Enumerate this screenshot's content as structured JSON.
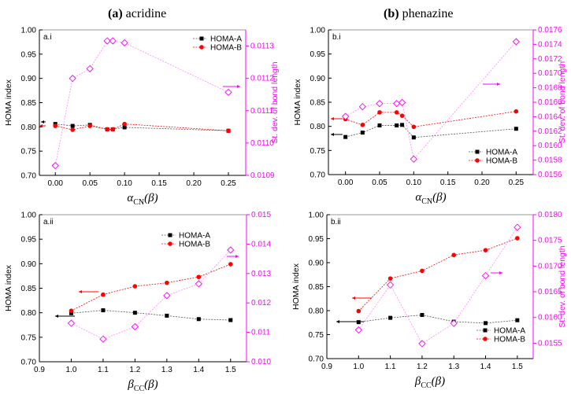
{
  "titles": [
    {
      "letter": "(a)",
      "name": " acridine"
    },
    {
      "letter": "(b)",
      "name": " phenazine"
    }
  ],
  "colors": {
    "homa_a": "#000000",
    "homa_b": "#ff0000",
    "stdev": "#ff00ff",
    "stdev_line": "#ff88ff"
  },
  "chart_data": [
    {
      "type": "line",
      "panel": "a.i",
      "xlabel": {
        "symbol": "α",
        "sub": "CN",
        "suffix": "(β)"
      },
      "ylabel": "HOMA index",
      "ylabel_right": "St. dev. of bond length",
      "xlim": [
        -0.023,
        0.275
      ],
      "xticks": [
        "0.00",
        "0.05",
        "0.10",
        "0.15",
        "0.20",
        "0.25"
      ],
      "ylim": [
        0.7,
        1.0
      ],
      "yticks": [
        "0.70",
        "0.75",
        "0.80",
        "0.85",
        "0.90",
        "0.95",
        "1.00"
      ],
      "ylim_right": [
        0.0109,
        0.01135
      ],
      "yticks_right": [
        "0.0109",
        "0.0110",
        "0.0111",
        "0.0112",
        "0.0113"
      ],
      "legend": "top-right",
      "grid": false,
      "x": [
        0,
        0.025,
        0.05,
        0.075,
        0.083,
        0.1,
        0.25
      ],
      "series": [
        {
          "name": "HOMA-A",
          "axis": "left",
          "marker": "square",
          "values": [
            0.806,
            0.802,
            0.804,
            0.795,
            0.795,
            0.799,
            0.792
          ]
        },
        {
          "name": "HOMA-B",
          "axis": "left",
          "marker": "circle",
          "values": [
            0.802,
            0.794,
            0.802,
            0.795,
            0.795,
            0.806,
            0.792
          ]
        },
        {
          "axis": "right",
          "marker": "diamond-open",
          "values": [
            0.01093,
            0.0112,
            0.01123,
            0.011316,
            0.011316,
            0.01131,
            0.011157
          ]
        }
      ]
    },
    {
      "type": "line",
      "panel": "b.i",
      "xlabel": {
        "symbol": "α",
        "sub": "CN",
        "suffix": "(β)"
      },
      "ylabel": "HOMA index",
      "ylabel_right": "St. dev. of bond length",
      "xlim": [
        -0.025,
        0.275
      ],
      "xticks": [
        "0.00",
        "0.05",
        "0.10",
        "0.15",
        "0.20",
        "0.25"
      ],
      "ylim": [
        0.7,
        1.0
      ],
      "yticks": [
        "0.70",
        "0.75",
        "0.80",
        "0.85",
        "0.90",
        "0.95",
        "1.00"
      ],
      "ylim_right": [
        0.0156,
        0.0176
      ],
      "yticks_right": [
        "0.0156",
        "0.0158",
        "0.0160",
        "0.0162",
        "0.0164",
        "0.0166",
        "0.0168",
        "0.0170",
        "0.0172",
        "0.0174",
        "0.0176"
      ],
      "legend": "bottom-right",
      "grid": false,
      "x": [
        0,
        0.025,
        0.05,
        0.075,
        0.083,
        0.1,
        0.25
      ],
      "series": [
        {
          "name": "HOMA-A",
          "axis": "left",
          "marker": "square",
          "values": [
            0.778,
            0.787,
            0.802,
            0.802,
            0.803,
            0.777,
            0.795
          ]
        },
        {
          "name": "HOMA-B",
          "axis": "left",
          "marker": "circle",
          "values": [
            0.815,
            0.803,
            0.829,
            0.829,
            0.822,
            0.799,
            0.831
          ]
        },
        {
          "axis": "right",
          "marker": "diamond-open",
          "values": [
            0.016404,
            0.016538,
            0.016582,
            0.016582,
            0.016596,
            0.015814,
            0.017437
          ]
        }
      ]
    },
    {
      "type": "line",
      "panel": "a.ii",
      "xlabel": {
        "symbol": "β",
        "sub": "CC",
        "suffix": "(β)"
      },
      "ylabel": "HOMA index",
      "ylabel_right": "",
      "xlim": [
        0.9,
        1.55
      ],
      "xticks": [
        "0.9",
        "1.0",
        "1.1",
        "1.2",
        "1.3",
        "1.4",
        "1.5"
      ],
      "ylim": [
        0.7,
        1.0
      ],
      "yticks": [
        "0.70",
        "0.75",
        "0.80",
        "0.85",
        "0.90",
        "0.95",
        "1.00"
      ],
      "ylim_right": [
        0.01,
        0.015
      ],
      "yticks_right": [
        "0.010",
        "0.011",
        "0.012",
        "0.013",
        "0.014",
        "0.015"
      ],
      "legend": "top-right",
      "grid": false,
      "x": [
        1.0,
        1.1,
        1.2,
        1.3,
        1.4,
        1.5
      ],
      "series": [
        {
          "name": "HOMA-A",
          "axis": "left",
          "marker": "square",
          "values": [
            0.799,
            0.805,
            0.8,
            0.794,
            0.787,
            0.785
          ]
        },
        {
          "name": "HOMA-B",
          "axis": "left",
          "marker": "circle",
          "values": [
            0.804,
            0.837,
            0.854,
            0.861,
            0.873,
            0.899
          ]
        },
        {
          "axis": "right",
          "marker": "diamond-open",
          "values": [
            0.01131,
            0.01077,
            0.01119,
            0.01225,
            0.01265,
            0.0138
          ]
        }
      ]
    },
    {
      "type": "line",
      "panel": "b.ii",
      "xlabel": {
        "symbol": "β",
        "sub": "CC",
        "suffix": "(β)"
      },
      "ylabel": "HOMA index",
      "ylabel_right": "St. dev. of bond length",
      "xlim": [
        0.9,
        1.55
      ],
      "xticks": [
        "0.9",
        "1.0",
        "1.1",
        "1.2",
        "1.3",
        "1.4",
        "1.5"
      ],
      "ylim": [
        0.7,
        1.0
      ],
      "yticks": [
        "0.70",
        "0.75",
        "0.80",
        "0.85",
        "0.90",
        "0.95",
        "1.00"
      ],
      "ylim_right": [
        0.0152,
        0.018
      ],
      "yticks_right": [
        "0.0155",
        "0.0160",
        "0.0165",
        "0.0170",
        "0.0175",
        "0.0180"
      ],
      "legend": "bottom-right",
      "grid": false,
      "x": [
        1.0,
        1.1,
        1.2,
        1.3,
        1.4,
        1.5
      ],
      "series": [
        {
          "name": "HOMA-A",
          "axis": "left",
          "marker": "square",
          "values": [
            0.776,
            0.785,
            0.791,
            0.777,
            0.774,
            0.78
          ]
        },
        {
          "name": "HOMA-B",
          "axis": "left",
          "marker": "circle",
          "values": [
            0.799,
            0.867,
            0.883,
            0.916,
            0.926,
            0.951
          ]
        },
        {
          "axis": "right",
          "marker": "diamond-open",
          "values": [
            0.015758,
            0.016634,
            0.015492,
            0.015886,
            0.016813,
            0.017754
          ]
        }
      ]
    }
  ]
}
